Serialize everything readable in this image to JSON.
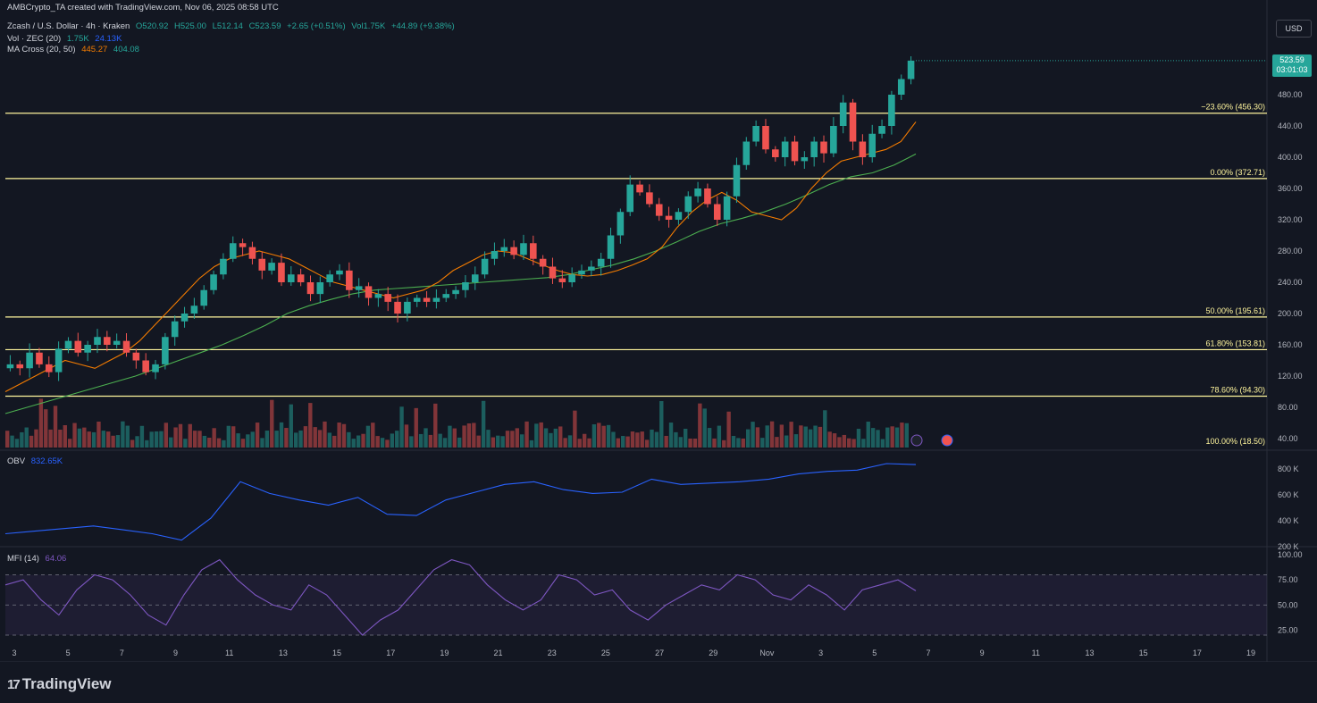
{
  "header": {
    "author_line": "AMBCrypto_TA created with TradingView.com, Nov 06, 2025 08:58 UTC",
    "symbol": "Zcash / U.S. Dollar · 4h · Kraken",
    "ohlc": {
      "o": "O520.92",
      "h": "H525.00",
      "l": "L512.14",
      "c": "C523.59",
      "chg": "+2.65 (+0.51%)",
      "vol": "Vol1.75K",
      "volchg": "+44.89 (+9.38%)"
    },
    "vol_label": "Vol · ZEC (20)",
    "vol_v1": "1.75K",
    "vol_v2": "24.13K",
    "ma_label": "MA Cross (20, 50)",
    "ma_v1": "445.27",
    "ma_v2": "404.08"
  },
  "currency_button": "USD",
  "last_price": {
    "price": "523.59",
    "countdown": "03:01:03"
  },
  "obv_label": {
    "name": "OBV",
    "value": "832.65K"
  },
  "mfi_label": {
    "name": "MFI (14)",
    "value": "64.06"
  },
  "brand": "TradingView",
  "colors": {
    "up": "#26a69a",
    "down": "#ef5350",
    "ma20": "#f57c00",
    "ma50": "#4caf50",
    "fib": "#fff59d",
    "obv": "#2962ff",
    "mfi": "#7e57c2"
  },
  "chart_data": {
    "type": "candlestick",
    "price_axis_ticks": [
      40,
      80,
      120,
      160,
      200,
      240,
      280,
      320,
      360,
      400,
      440,
      480
    ],
    "x_ticks": [
      "3",
      "5",
      "7",
      "9",
      "11",
      "13",
      "15",
      "17",
      "19",
      "21",
      "23",
      "25",
      "27",
      "29",
      "Nov",
      "3",
      "5",
      "7",
      "9",
      "11",
      "13",
      "15",
      "17",
      "19"
    ],
    "fib_levels": [
      {
        "label": "−23.60% (456.30)",
        "value": 456.3
      },
      {
        "label": "0.00% (372.71)",
        "value": 372.71
      },
      {
        "label": "50.00% (195.61)",
        "value": 195.61
      },
      {
        "label": "61.80% (153.81)",
        "value": 153.81
      },
      {
        "label": "78.60% (94.30)",
        "value": 94.3
      },
      {
        "label": "100.00% (18.50)",
        "value": 18.5
      }
    ],
    "close_path": [
      135,
      130,
      150,
      135,
      125,
      155,
      165,
      150,
      160,
      170,
      160,
      165,
      150,
      140,
      125,
      135,
      170,
      190,
      200,
      210,
      230,
      250,
      270,
      290,
      285,
      270,
      255,
      265,
      240,
      250,
      240,
      225,
      240,
      250,
      255,
      230,
      235,
      220,
      225,
      215,
      200,
      215,
      220,
      215,
      220,
      225,
      230,
      240,
      250,
      270,
      280,
      285,
      275,
      290,
      270,
      260,
      245,
      240,
      250,
      255,
      260,
      270,
      300,
      330,
      365,
      355,
      340,
      325,
      320,
      330,
      350,
      360,
      340,
      320,
      350,
      390,
      420,
      440,
      410,
      400,
      420,
      395,
      400,
      420,
      405,
      440,
      470,
      420,
      400,
      430,
      440,
      480,
      500,
      523.59
    ],
    "ma20_path": [
      100,
      110,
      120,
      130,
      140,
      135,
      130,
      140,
      150,
      165,
      185,
      205,
      225,
      245,
      260,
      270,
      275,
      280,
      275,
      270,
      260,
      250,
      240,
      235,
      230,
      225,
      220,
      225,
      230,
      240,
      255,
      265,
      275,
      280,
      278,
      270,
      262,
      255,
      250,
      248,
      250,
      255,
      262,
      270,
      285,
      310,
      330,
      345,
      355,
      345,
      330,
      325,
      320,
      335,
      360,
      380,
      395,
      400,
      405,
      410,
      420,
      445.27
    ],
    "ma50_path": [
      72,
      80,
      88,
      96,
      104,
      112,
      120,
      130,
      140,
      150,
      160,
      172,
      185,
      200,
      210,
      218,
      225,
      230,
      232,
      234,
      236,
      238,
      240,
      242,
      244,
      246,
      250,
      256,
      262,
      270,
      280,
      292,
      305,
      315,
      322,
      330,
      340,
      352,
      365,
      375,
      380,
      390,
      404.08
    ],
    "obv_ticks": [
      "800 K",
      "600 K",
      "400 K",
      "200 K"
    ],
    "obv_path": [
      300,
      320,
      340,
      360,
      330,
      300,
      250,
      420,
      700,
      610,
      560,
      520,
      580,
      450,
      440,
      560,
      620,
      680,
      700,
      640,
      610,
      620,
      720,
      680,
      690,
      700,
      720,
      760,
      780,
      790,
      840,
      832.65
    ],
    "mfi_ticks": [
      "100.00",
      "75.00",
      "50.00",
      "25.00"
    ],
    "mfi_bands": [
      80,
      20
    ],
    "mfi_path": [
      70,
      75,
      55,
      40,
      65,
      80,
      75,
      60,
      40,
      30,
      60,
      85,
      95,
      75,
      60,
      50,
      45,
      70,
      60,
      40,
      20,
      35,
      45,
      65,
      85,
      95,
      90,
      70,
      55,
      45,
      55,
      80,
      75,
      60,
      65,
      45,
      35,
      50,
      60,
      70,
      65,
      80,
      75,
      60,
      55,
      70,
      60,
      45,
      65,
      70,
      75,
      64.06
    ]
  }
}
